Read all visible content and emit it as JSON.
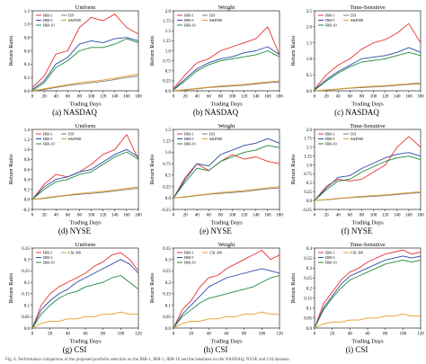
{
  "figure": {
    "bottom_text": "Fig. 4. Performance comparison of the proposed portfolio selection on the IRR-1, IRR-5, IRR-10 and the baselines on the NASDAQ, NYSE and CSI datasets.",
    "panels": [
      {
        "id": "a",
        "caption": "(a)  NASDAQ",
        "title": "Uniform",
        "dataset": "nasdaq"
      },
      {
        "id": "b",
        "caption": "(b)  NASDAQ",
        "title": "Weight",
        "dataset": "nasdaq"
      },
      {
        "id": "c",
        "caption": "(c)  NASDAQ",
        "title": "Time-Sensitive",
        "dataset": "nasdaq"
      },
      {
        "id": "d",
        "caption": "(d)  NYSE",
        "title": "Uniform",
        "dataset": "nyse"
      },
      {
        "id": "e",
        "caption": "(e)  NYSE",
        "title": "Weight",
        "dataset": "nyse"
      },
      {
        "id": "f",
        "caption": "(f)  NYSE",
        "title": "Time-Sensitive",
        "dataset": "nyse"
      },
      {
        "id": "g",
        "caption": "(g)  CSI",
        "title": "Uniform",
        "dataset": "csi"
      },
      {
        "id": "h",
        "caption": "(h)  CSI",
        "title": "Weight",
        "dataset": "csi"
      },
      {
        "id": "i",
        "caption": "(i)  CSI",
        "title": "Time-Sensitive",
        "dataset": "csi"
      }
    ]
  },
  "colors": {
    "IRR-1": "#e8312f",
    "IRR-5": "#2c4aa6",
    "IRR-10": "#1f8a3c",
    "DJI": "#7a7a7a",
    "S&P500": "#e39b2a",
    "CSI 300": "#e39b2a"
  },
  "chart_data": [
    {
      "type": "line",
      "title": "Uniform",
      "xlabel": "Trading Days",
      "ylabel": "Return Ratio",
      "xlim": [
        0,
        180
      ],
      "ylim": [
        0,
        1.2
      ],
      "xticks": [
        0,
        20,
        40,
        60,
        80,
        100,
        120,
        140,
        160,
        180
      ],
      "yticks": [
        0,
        0.2,
        0.4,
        0.6,
        0.8,
        1.0,
        1.2
      ],
      "x": [
        0,
        20,
        40,
        60,
        80,
        100,
        120,
        140,
        160,
        180
      ],
      "series": [
        {
          "name": "IRR-1",
          "values": [
            0.05,
            0.22,
            0.55,
            0.6,
            0.95,
            1.1,
            1.05,
            1.15,
            0.95,
            0.85
          ]
        },
        {
          "name": "IRR-5",
          "values": [
            0.02,
            0.15,
            0.4,
            0.5,
            0.7,
            0.75,
            0.72,
            0.78,
            0.8,
            0.75
          ]
        },
        {
          "name": "IRR-10",
          "values": [
            0.0,
            0.12,
            0.35,
            0.45,
            0.6,
            0.65,
            0.65,
            0.7,
            0.78,
            0.72
          ]
        },
        {
          "name": "DJI",
          "values": [
            0.0,
            0.02,
            0.05,
            0.08,
            0.1,
            0.12,
            0.14,
            0.17,
            0.2,
            0.22
          ]
        },
        {
          "name": "S&P500",
          "values": [
            0.0,
            0.03,
            0.06,
            0.09,
            0.12,
            0.14,
            0.16,
            0.19,
            0.22,
            0.25
          ]
        }
      ]
    },
    {
      "type": "line",
      "title": "Weight",
      "xlabel": "Trading Days",
      "ylabel": "Return Ratio",
      "xlim": [
        0,
        180
      ],
      "ylim": [
        0,
        2.0
      ],
      "xticks": [
        0,
        20,
        40,
        60,
        80,
        100,
        120,
        140,
        160,
        180
      ],
      "yticks": [
        0,
        0.25,
        0.5,
        0.75,
        1.0,
        1.25,
        1.5,
        1.75,
        2.0
      ],
      "x": [
        0,
        20,
        40,
        60,
        80,
        100,
        120,
        140,
        160,
        180
      ],
      "series": [
        {
          "name": "IRR-1",
          "values": [
            0.05,
            0.4,
            0.7,
            0.8,
            1.0,
            1.1,
            1.2,
            1.3,
            1.6,
            0.9
          ]
        },
        {
          "name": "IRR-5",
          "values": [
            0.03,
            0.3,
            0.55,
            0.7,
            0.8,
            0.85,
            0.95,
            1.0,
            1.1,
            0.9
          ]
        },
        {
          "name": "IRR-10",
          "values": [
            0.02,
            0.25,
            0.5,
            0.65,
            0.75,
            0.8,
            0.85,
            0.9,
            1.0,
            0.85
          ]
        },
        {
          "name": "DJI",
          "values": [
            0.0,
            0.02,
            0.05,
            0.08,
            0.1,
            0.12,
            0.14,
            0.17,
            0.2,
            0.22
          ]
        },
        {
          "name": "S&P500",
          "values": [
            0.0,
            0.03,
            0.06,
            0.09,
            0.12,
            0.14,
            0.16,
            0.19,
            0.22,
            0.25
          ]
        }
      ]
    },
    {
      "type": "line",
      "title": "Time-Sensitive",
      "xlabel": "Trading Days",
      "ylabel": "Return Ratio",
      "xlim": [
        0,
        180
      ],
      "ylim": [
        0,
        2.5
      ],
      "xticks": [
        0,
        20,
        40,
        60,
        80,
        100,
        120,
        140,
        160,
        180
      ],
      "yticks": [
        0,
        0.5,
        1.0,
        1.5,
        2.0,
        2.5
      ],
      "x": [
        0,
        20,
        40,
        60,
        80,
        100,
        120,
        140,
        160,
        180
      ],
      "series": [
        {
          "name": "IRR-1",
          "values": [
            0.05,
            0.5,
            0.8,
            1.0,
            1.3,
            1.5,
            1.6,
            1.8,
            2.1,
            1.5
          ]
        },
        {
          "name": "IRR-5",
          "values": [
            0.03,
            0.35,
            0.6,
            0.8,
            1.0,
            1.05,
            1.1,
            1.2,
            1.35,
            1.2
          ]
        },
        {
          "name": "IRR-10",
          "values": [
            0.02,
            0.3,
            0.55,
            0.75,
            0.9,
            0.95,
            1.0,
            1.1,
            1.2,
            1.1
          ]
        },
        {
          "name": "DJI",
          "values": [
            0.0,
            0.02,
            0.05,
            0.08,
            0.1,
            0.12,
            0.14,
            0.17,
            0.2,
            0.22
          ]
        },
        {
          "name": "S&P500",
          "values": [
            0.0,
            0.03,
            0.06,
            0.09,
            0.12,
            0.14,
            0.16,
            0.19,
            0.22,
            0.25
          ]
        }
      ]
    },
    {
      "type": "line",
      "title": "Uniform",
      "xlabel": "Trading Days",
      "ylabel": "Return Ratio",
      "xlim": [
        0,
        180
      ],
      "ylim": [
        -0.2,
        1.4
      ],
      "xticks": [
        0,
        20,
        40,
        60,
        80,
        100,
        120,
        140,
        160,
        180
      ],
      "yticks": [
        -0.2,
        0.0,
        0.2,
        0.4,
        0.6,
        0.8,
        1.0,
        1.2,
        1.4
      ],
      "x": [
        0,
        20,
        40,
        60,
        80,
        100,
        120,
        140,
        160,
        180
      ],
      "series": [
        {
          "name": "IRR-1",
          "values": [
            0.0,
            0.3,
            0.5,
            0.45,
            0.55,
            0.7,
            0.9,
            1.0,
            1.3,
            0.8
          ]
        },
        {
          "name": "IRR-5",
          "values": [
            0.0,
            0.25,
            0.4,
            0.45,
            0.55,
            0.6,
            0.75,
            0.9,
            1.0,
            0.85
          ]
        },
        {
          "name": "IRR-10",
          "values": [
            0.0,
            0.2,
            0.35,
            0.4,
            0.5,
            0.55,
            0.7,
            0.85,
            0.95,
            0.8
          ]
        },
        {
          "name": "DJI",
          "values": [
            0.0,
            0.02,
            0.05,
            0.08,
            0.1,
            0.12,
            0.14,
            0.17,
            0.2,
            0.22
          ]
        },
        {
          "name": "S&P500",
          "values": [
            0.0,
            0.03,
            0.06,
            0.09,
            0.12,
            0.14,
            0.16,
            0.19,
            0.22,
            0.25
          ]
        }
      ]
    },
    {
      "type": "line",
      "title": "Weight",
      "xlabel": "Trading Days",
      "ylabel": "Return Ratio",
      "xlim": [
        0,
        180
      ],
      "ylim": [
        -0.25,
        1.5
      ],
      "xticks": [
        0,
        20,
        40,
        60,
        80,
        100,
        120,
        140,
        160,
        180
      ],
      "yticks": [
        -0.25,
        0.0,
        0.25,
        0.5,
        0.75,
        1.0,
        1.25,
        1.5
      ],
      "x": [
        0,
        20,
        40,
        60,
        80,
        100,
        120,
        140,
        160,
        180
      ],
      "series": [
        {
          "name": "IRR-1",
          "values": [
            0.0,
            0.45,
            0.75,
            0.6,
            0.8,
            0.95,
            0.85,
            0.9,
            0.8,
            0.75
          ]
        },
        {
          "name": "IRR-5",
          "values": [
            0.0,
            0.4,
            0.75,
            0.7,
            0.95,
            1.05,
            1.15,
            1.2,
            1.3,
            1.2
          ]
        },
        {
          "name": "IRR-10",
          "values": [
            0.0,
            0.35,
            0.65,
            0.6,
            0.8,
            0.9,
            1.0,
            1.05,
            1.15,
            1.1
          ]
        },
        {
          "name": "DJI",
          "values": [
            0.0,
            0.02,
            0.05,
            0.08,
            0.1,
            0.12,
            0.14,
            0.17,
            0.2,
            0.22
          ]
        },
        {
          "name": "S&P500",
          "values": [
            0.0,
            0.03,
            0.06,
            0.09,
            0.12,
            0.14,
            0.16,
            0.19,
            0.22,
            0.25
          ]
        }
      ]
    },
    {
      "type": "line",
      "title": "Time-Sensitive",
      "xlabel": "Trading Days",
      "ylabel": "Return Ratio",
      "xlim": [
        0,
        180
      ],
      "ylim": [
        -0.25,
        2.0
      ],
      "xticks": [
        0,
        20,
        40,
        60,
        80,
        100,
        120,
        140,
        160,
        180
      ],
      "yticks": [
        -0.25,
        0.0,
        0.25,
        0.5,
        0.75,
        1.0,
        1.25,
        1.5,
        1.75,
        2.0
      ],
      "x": [
        0,
        20,
        40,
        60,
        80,
        100,
        120,
        140,
        160,
        180
      ],
      "series": [
        {
          "name": "IRR-1",
          "values": [
            0.0,
            0.4,
            0.6,
            0.55,
            0.6,
            0.8,
            1.0,
            1.5,
            1.8,
            1.5
          ]
        },
        {
          "name": "IRR-5",
          "values": [
            0.0,
            0.35,
            0.65,
            0.7,
            0.9,
            1.05,
            1.2,
            1.3,
            1.35,
            1.25
          ]
        },
        {
          "name": "IRR-10",
          "values": [
            0.0,
            0.3,
            0.55,
            0.6,
            0.8,
            0.95,
            1.1,
            1.2,
            1.25,
            1.15
          ]
        },
        {
          "name": "DJI",
          "values": [
            0.0,
            0.02,
            0.05,
            0.08,
            0.1,
            0.12,
            0.14,
            0.17,
            0.2,
            0.22
          ]
        },
        {
          "name": "S&P500",
          "values": [
            0.0,
            0.03,
            0.06,
            0.09,
            0.12,
            0.14,
            0.16,
            0.19,
            0.22,
            0.25
          ]
        }
      ]
    },
    {
      "type": "line",
      "title": "Uniform",
      "xlabel": "Trading Days",
      "ylabel": "Return Ratio",
      "xlim": [
        0,
        120
      ],
      "ylim": [
        0,
        0.35
      ],
      "xticks": [
        0,
        20,
        40,
        60,
        80,
        100,
        120
      ],
      "yticks": [
        0.0,
        0.05,
        0.1,
        0.15,
        0.2,
        0.25,
        0.3,
        0.35
      ],
      "x": [
        0,
        10,
        20,
        30,
        40,
        50,
        60,
        70,
        80,
        90,
        100,
        110,
        120
      ],
      "series": [
        {
          "name": "IRR-1",
          "values": [
            0.0,
            0.1,
            0.15,
            0.18,
            0.2,
            0.22,
            0.24,
            0.27,
            0.29,
            0.32,
            0.33,
            0.3,
            0.25
          ]
        },
        {
          "name": "IRR-5",
          "values": [
            0.0,
            0.08,
            0.12,
            0.15,
            0.17,
            0.2,
            0.22,
            0.24,
            0.26,
            0.28,
            0.3,
            0.28,
            0.24
          ]
        },
        {
          "name": "IRR-10",
          "values": [
            0.0,
            0.06,
            0.1,
            0.13,
            0.15,
            0.16,
            0.18,
            0.19,
            0.2,
            0.22,
            0.23,
            0.2,
            0.17
          ]
        },
        {
          "name": "CSI 300",
          "values": [
            0.0,
            0.02,
            0.03,
            0.03,
            0.04,
            0.04,
            0.05,
            0.05,
            0.06,
            0.06,
            0.07,
            0.06,
            0.06
          ]
        }
      ]
    },
    {
      "type": "line",
      "title": "Weight",
      "xlabel": "Trading Days",
      "ylabel": "Return Ratio",
      "xlim": [
        0,
        120
      ],
      "ylim": [
        0,
        0.35
      ],
      "xticks": [
        0,
        20,
        40,
        60,
        80,
        100,
        120
      ],
      "yticks": [
        0.0,
        0.05,
        0.1,
        0.15,
        0.2,
        0.25,
        0.3,
        0.35
      ],
      "x": [
        0,
        10,
        20,
        30,
        40,
        50,
        60,
        70,
        80,
        90,
        100,
        110,
        120
      ],
      "series": [
        {
          "name": "IRR-1",
          "values": [
            0.0,
            0.08,
            0.12,
            0.18,
            0.22,
            0.23,
            0.26,
            0.28,
            0.3,
            0.32,
            0.34,
            0.3,
            0.32
          ]
        },
        {
          "name": "IRR-5",
          "values": [
            0.0,
            0.06,
            0.1,
            0.14,
            0.18,
            0.2,
            0.22,
            0.23,
            0.24,
            0.25,
            0.26,
            0.25,
            0.24
          ]
        },
        {
          "name": "IRR-10",
          "values": [
            0.0,
            0.05,
            0.08,
            0.11,
            0.13,
            0.14,
            0.15,
            0.16,
            0.17,
            0.18,
            0.2,
            0.22,
            0.23
          ]
        },
        {
          "name": "CSI 300",
          "values": [
            0.0,
            0.02,
            0.03,
            0.03,
            0.04,
            0.04,
            0.05,
            0.05,
            0.06,
            0.06,
            0.07,
            0.06,
            0.06
          ]
        }
      ]
    },
    {
      "type": "line",
      "title": "Time-Sensitive",
      "xlabel": "Trading Days",
      "ylabel": "Return Ratio",
      "xlim": [
        0,
        120
      ],
      "ylim": [
        0,
        0.4
      ],
      "xticks": [
        0,
        20,
        40,
        60,
        80,
        100,
        120
      ],
      "yticks": [
        0.0,
        0.05,
        0.1,
        0.15,
        0.2,
        0.25,
        0.3,
        0.35,
        0.4
      ],
      "x": [
        0,
        10,
        20,
        30,
        40,
        50,
        60,
        70,
        80,
        90,
        100,
        110,
        120
      ],
      "series": [
        {
          "name": "IRR-1",
          "values": [
            0.0,
            0.12,
            0.18,
            0.24,
            0.28,
            0.3,
            0.33,
            0.35,
            0.37,
            0.38,
            0.39,
            0.37,
            0.38
          ]
        },
        {
          "name": "IRR-5",
          "values": [
            0.0,
            0.1,
            0.16,
            0.22,
            0.26,
            0.28,
            0.3,
            0.32,
            0.34,
            0.35,
            0.36,
            0.35,
            0.36
          ]
        },
        {
          "name": "IRR-10",
          "values": [
            0.0,
            0.09,
            0.15,
            0.2,
            0.24,
            0.26,
            0.28,
            0.3,
            0.32,
            0.33,
            0.34,
            0.33,
            0.34
          ]
        },
        {
          "name": "CSI 300",
          "values": [
            0.0,
            0.02,
            0.03,
            0.03,
            0.04,
            0.04,
            0.05,
            0.05,
            0.06,
            0.06,
            0.07,
            0.06,
            0.06
          ]
        }
      ]
    }
  ]
}
